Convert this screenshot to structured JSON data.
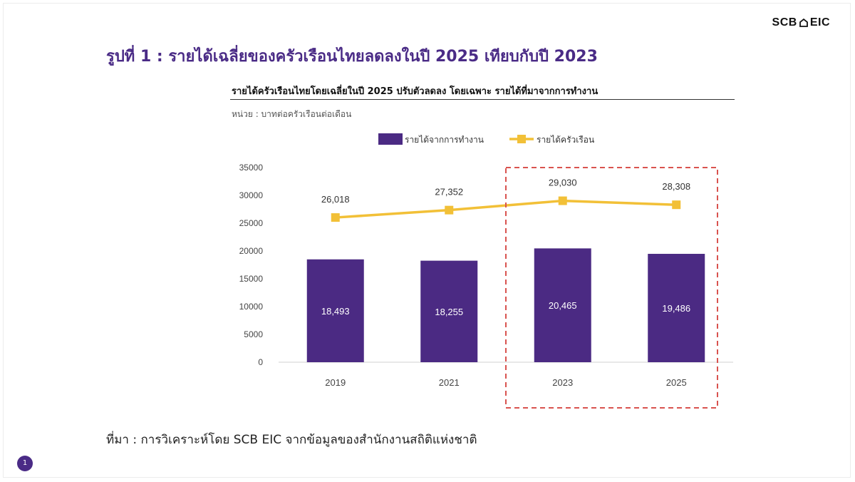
{
  "logo": {
    "text_left": "SCB",
    "text_right": "EIC"
  },
  "main_title": "รูปที่ 1 : รายได้เฉลี่ยของครัวเรือนไทยลดลงในปี 2025 เทียบกับปี 2023",
  "chart_title": "รายได้ครัวเรือนไทยโดยเฉลี่ยในปี 2025 ปรับตัวลดลง โดยเฉพาะ รายได้ที่มาจากการทำงาน",
  "unit_label": "หน่วย : บาทต่อครัวเรือนต่อเดือน",
  "source": "ที่มา : การวิเคราะห์โดย SCB EIC จากข้อมูลของสำนักงานสถิติแห่งชาติ",
  "page_number": "1",
  "colors": {
    "bar": "#4b2a83",
    "line": "#f2c037",
    "title": "#4a2b86",
    "highlight": "#d9534f"
  },
  "chart_data": {
    "type": "bar",
    "categories": [
      "2019",
      "2021",
      "2023",
      "2025"
    ],
    "series": [
      {
        "name": "รายได้จากการทำงาน",
        "kind": "bar",
        "values": [
          18493,
          18255,
          20465,
          19486
        ],
        "labels": [
          "18,493",
          "18,255",
          "20,465",
          "19,486"
        ]
      },
      {
        "name": "รายได้ครัวเรือน",
        "kind": "line",
        "values": [
          26018,
          27352,
          29030,
          28308
        ],
        "labels": [
          "26,018",
          "27,352",
          "29,030",
          "28,308"
        ]
      }
    ],
    "yticks": [
      "0",
      "5000",
      "10000",
      "15000",
      "20000",
      "25000",
      "30000",
      "35000"
    ],
    "ylim": [
      0,
      35000
    ],
    "legend_position": "top",
    "grid": false,
    "highlight_categories": [
      "2023",
      "2025"
    ]
  }
}
